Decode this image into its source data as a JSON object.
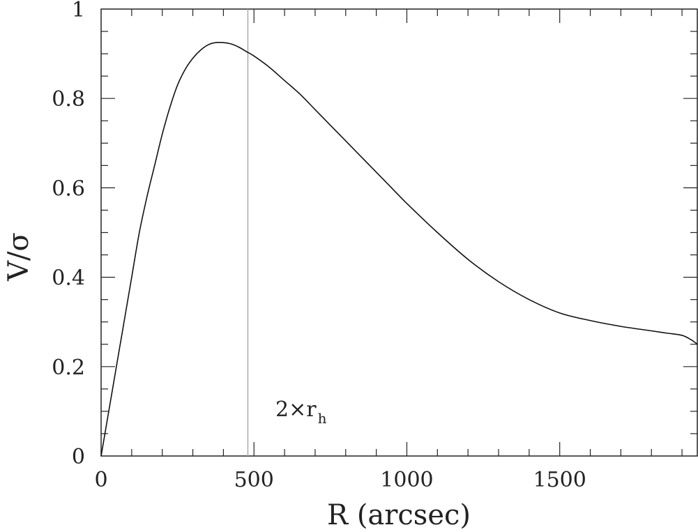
{
  "chart_data": {
    "type": "line",
    "title": "",
    "xlabel": "R (arcsec)",
    "ylabel": "V/σ",
    "xlim": [
      0,
      1950
    ],
    "ylim": [
      0,
      1
    ],
    "x_ticks": [
      "0",
      "500",
      "1000",
      "1500"
    ],
    "y_ticks": [
      "0",
      "0.2",
      "0.4",
      "0.6",
      "0.8",
      "1"
    ],
    "grid": false,
    "series": [
      {
        "x": [
          0,
          25,
          50,
          75,
          100,
          125,
          150,
          175,
          200,
          225,
          250,
          275,
          300,
          325,
          350,
          375,
          400,
          425,
          450,
          475,
          500,
          550,
          600,
          650,
          700,
          750,
          800,
          850,
          900,
          950,
          1000,
          1100,
          1200,
          1300,
          1400,
          1500,
          1600,
          1700,
          1800,
          1850,
          1900,
          1930,
          1950
        ],
        "y": [
          0.0,
          0.1,
          0.2,
          0.3,
          0.4,
          0.5,
          0.58,
          0.65,
          0.72,
          0.78,
          0.83,
          0.865,
          0.89,
          0.908,
          0.92,
          0.925,
          0.925,
          0.922,
          0.915,
          0.905,
          0.895,
          0.87,
          0.84,
          0.81,
          0.775,
          0.74,
          0.705,
          0.67,
          0.635,
          0.6,
          0.565,
          0.5,
          0.44,
          0.39,
          0.35,
          0.32,
          0.303,
          0.29,
          0.28,
          0.275,
          0.27,
          0.26,
          0.25
        ]
      }
    ],
    "vertical_line": {
      "x": 480,
      "color": "#aaaaaa"
    },
    "annotation": {
      "text": "2×r",
      "subscript": "h",
      "x": 570,
      "y": 0.1
    }
  }
}
